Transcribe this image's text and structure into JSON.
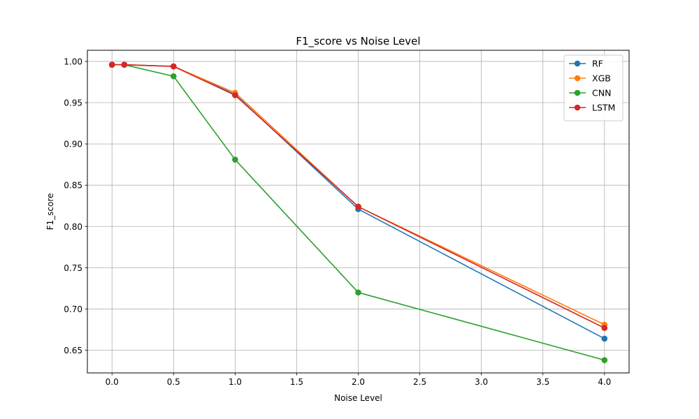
{
  "chart_data": {
    "type": "line",
    "title": "F1_score vs Noise Level",
    "xlabel": "Noise Level",
    "ylabel": "F1_score",
    "xlim": [
      -0.2,
      4.2
    ],
    "ylim": [
      0.6225,
      1.0135
    ],
    "xticks": [
      0.0,
      0.5,
      1.0,
      1.5,
      2.0,
      2.5,
      3.0,
      3.5,
      4.0
    ],
    "xtick_labels": [
      "0.0",
      "0.5",
      "1.0",
      "1.5",
      "2.0",
      "2.5",
      "3.0",
      "3.5",
      "4.0"
    ],
    "yticks": [
      0.65,
      0.7,
      0.75,
      0.8,
      0.85,
      0.9,
      0.95,
      1.0
    ],
    "ytick_labels": [
      "0.65",
      "0.70",
      "0.75",
      "0.80",
      "0.85",
      "0.90",
      "0.95",
      "1.00"
    ],
    "grid": true,
    "legend_position": "top-right",
    "x": [
      0.0,
      0.1,
      0.5,
      1.0,
      2.0,
      4.0
    ],
    "series": [
      {
        "name": "RF",
        "color": "#1f77b4",
        "values": [
          0.996,
          0.996,
          0.994,
          0.96,
          0.821,
          0.664
        ]
      },
      {
        "name": "XGB",
        "color": "#ff7f0e",
        "values": [
          0.996,
          0.996,
          0.994,
          0.962,
          0.824,
          0.681
        ]
      },
      {
        "name": "CNN",
        "color": "#2ca02c",
        "values": [
          0.996,
          0.996,
          0.982,
          0.881,
          0.72,
          0.638
        ]
      },
      {
        "name": "LSTM",
        "color": "#d62728",
        "values": [
          0.996,
          0.996,
          0.994,
          0.959,
          0.824,
          0.677
        ]
      }
    ]
  }
}
